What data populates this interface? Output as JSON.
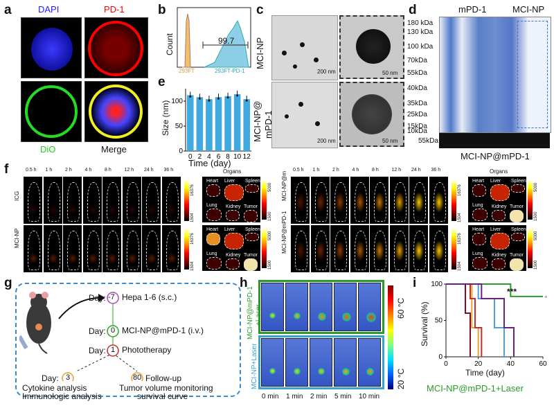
{
  "panel_labels": {
    "a": "a",
    "b": "b",
    "c": "c",
    "d": "d",
    "e": "e",
    "f": "f",
    "g": "g",
    "h": "h",
    "i": "i"
  },
  "panel_a": {
    "dapi": "DAPI",
    "pd1": "PD-1",
    "dio": "DiO",
    "merge": "Merge"
  },
  "panel_b": {
    "ylabel": "Count",
    "value": "99.7",
    "x1": "293FT",
    "x2": "293FT-PD-1"
  },
  "panel_c": {
    "row1": "MCI-NP",
    "row2a": "MCI-NP@",
    "row2b": "mPD-1",
    "s200": "200 nm",
    "s50": "50 nm"
  },
  "panel_d": {
    "lane1": "mPD-1",
    "lane2": "MCI-NP",
    "bottom": "MCI-NP@mPD-1",
    "markers": [
      "180 kDa",
      "130 kDa",
      "100 kDa",
      "70kDa",
      "55kDa",
      "40kDa",
      "35kDa",
      "25kDa",
      "15kDa",
      "10kDa",
      "55kDa"
    ]
  },
  "panel_e": {
    "ylabel": "Size (nm)",
    "xlabel": "Time (day)",
    "yticks": [
      "100",
      "50",
      "0"
    ],
    "xticks": [
      "0",
      "2",
      "4",
      "6",
      "8",
      "10",
      "12"
    ]
  },
  "chart_data": {
    "type": "bar",
    "categories": [
      "0",
      "2",
      "4",
      "6",
      "8",
      "10",
      "12"
    ],
    "values": [
      112,
      108,
      104,
      108,
      110,
      114,
      104
    ],
    "xlabel": "Time (day)",
    "ylabel": "Size (nm)",
    "ylim": [
      0,
      125
    ]
  },
  "panel_f": {
    "times": [
      "0.5 h",
      "1 h",
      "2 h",
      "4 h",
      "8 h",
      "12 h",
      "24 h",
      "36 h"
    ],
    "organs_title": "Organs",
    "row_icg": "ICG",
    "row_mci": "MCI-NP",
    "row_mpd": "MCI-NP@m",
    "row_mpd2": "MCI-NP@mPD-1",
    "heart": "Heart",
    "liver": "Liver",
    "spleen": "Spleen",
    "lung": "Lung",
    "kidney": "Kidney",
    "tumor": "Tumor",
    "cb_hi": "16376",
    "cb_lo": "1504",
    "cb_hi2": "5000",
    "cb_lo2": "1500"
  },
  "panel_g": {
    "day": "Day:",
    "d1": "-7",
    "t1": "Hepa 1-6 (s.c.)",
    "d2": "0",
    "t2": "MCI-NP@mPD-1 (i.v.)",
    "d3": "1",
    "t3": "Phototherapy",
    "d4": "3",
    "d5": "80",
    "t5": "Follow-up",
    "left1": "Cytokine analysis",
    "left2": "Immunologic analysis",
    "right1": "Tumor volume monitoring",
    "right2": "survival curve"
  },
  "panel_h": {
    "row1a": "MCI-NP@mPD-1",
    "row1b": "+Laser",
    "row2": "MCI-NP+Laser",
    "times": [
      "0 min",
      "1 min",
      "2 min",
      "5 min",
      "10 min"
    ],
    "hi": "60 °C",
    "lo": "20 °C"
  },
  "panel_i": {
    "ylabel": "Survival (%)",
    "xlabel": "Time (day)",
    "sig": "***",
    "yticks": [
      "100",
      "50",
      "0"
    ],
    "xticks": [
      "0",
      "20",
      "40",
      "60"
    ],
    "legend": "MCI-NP@mPD-1+Laser"
  }
}
